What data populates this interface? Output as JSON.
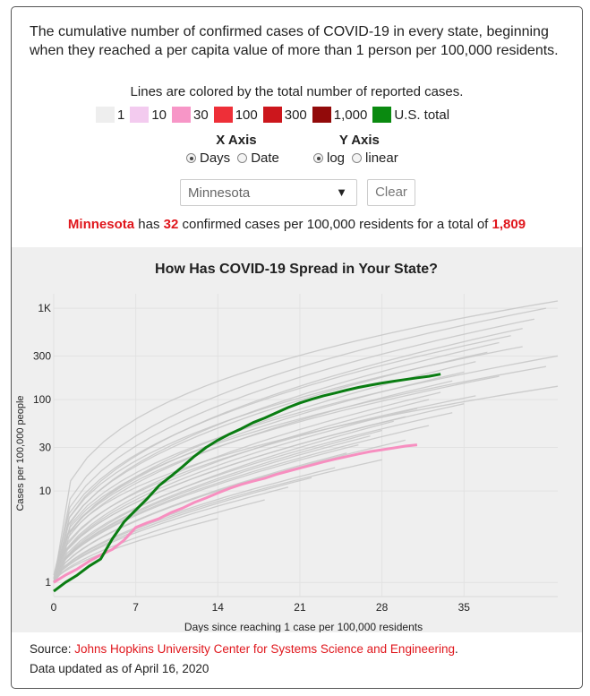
{
  "intro": "The cumulative number of confirmed cases of COVID-19 in every state, beginning when they reached a per capita value of more than 1 person per 100,000 residents.",
  "legend": {
    "caption": "Lines are colored by the total number of reported cases.",
    "items": [
      {
        "label": "1",
        "color": "#eeeeee"
      },
      {
        "label": "10",
        "color": "#f3cbef"
      },
      {
        "label": "30",
        "color": "#f796c7"
      },
      {
        "label": "100",
        "color": "#ee2f38"
      },
      {
        "label": "300",
        "color": "#cc161c"
      },
      {
        "label": "1,000",
        "color": "#920a0a"
      },
      {
        "label": "U.S. total",
        "color": "#0a8a10"
      }
    ]
  },
  "controls": {
    "x_axis": {
      "heading": "X Axis",
      "options": [
        "Days",
        "Date"
      ],
      "selected": "Days"
    },
    "y_axis": {
      "heading": "Y Axis",
      "options": [
        "log",
        "linear"
      ],
      "selected": "log"
    },
    "state_select": "Minnesota",
    "clear_label": "Clear"
  },
  "summary": {
    "state": "Minnesota",
    "text1": " has ",
    "per_capita": "32",
    "text2": " confirmed cases per 100,000 residents for a total of ",
    "total": "1,809"
  },
  "colors": {
    "accent_red": "#e0161c",
    "us_green": "#0a7d12",
    "state_pink": "#f78fc0",
    "state_gray": "#c6c6c6",
    "panel_bg": "#efefef"
  },
  "chart_data": {
    "type": "line",
    "title": "How Has COVID-19 Spread in Your State?",
    "xlabel": "Days since reaching 1 case per 100,000 residents",
    "ylabel": "Cases per 100,000 people",
    "xlim": [
      0,
      43
    ],
    "ylim": [
      0.7,
      1200
    ],
    "yscale": "log",
    "x_ticks": [
      0,
      7,
      14,
      21,
      28,
      35
    ],
    "y_ticks": [
      {
        "value": 1,
        "label": "1"
      },
      {
        "value": 10,
        "label": "10"
      },
      {
        "value": 30,
        "label": "30"
      },
      {
        "value": 100,
        "label": "100"
      },
      {
        "value": 300,
        "label": "300"
      },
      {
        "value": 1000,
        "label": "1K"
      }
    ],
    "highlight_series": [
      {
        "name": "U.S. total",
        "color": "#0a7d12",
        "x": [
          0,
          1,
          2,
          3,
          4,
          5,
          6,
          7,
          8,
          9,
          10,
          11,
          12,
          13,
          14,
          15,
          16,
          17,
          18,
          19,
          20,
          21,
          22,
          23,
          24,
          25,
          26,
          27,
          28,
          29,
          30,
          31,
          32,
          33
        ],
        "y": [
          0.8,
          1.0,
          1.2,
          1.5,
          1.8,
          3.0,
          4.6,
          6.2,
          8.3,
          11.5,
          14.5,
          18.5,
          24,
          30,
          36,
          42,
          48,
          56,
          63,
          72,
          82,
          92,
          101,
          110,
          118,
          127,
          136,
          144,
          152,
          159,
          166,
          173,
          180,
          190
        ]
      },
      {
        "name": "Minnesota",
        "color": "#f78fc0",
        "x": [
          0,
          1,
          2,
          3,
          4,
          5,
          6,
          7,
          8,
          9,
          10,
          11,
          12,
          13,
          14,
          15,
          16,
          17,
          18,
          19,
          20,
          21,
          22,
          23,
          24,
          25,
          26,
          27,
          28,
          29,
          30,
          31
        ],
        "y": [
          1.0,
          1.2,
          1.4,
          1.7,
          2.0,
          2.3,
          2.9,
          4.0,
          4.5,
          5.0,
          5.8,
          6.5,
          7.5,
          8.4,
          9.5,
          10.7,
          11.8,
          12.8,
          13.8,
          15.2,
          16.5,
          17.8,
          19.2,
          20.8,
          22.3,
          23.8,
          25.4,
          27,
          28.3,
          29.6,
          31.0,
          32.0
        ]
      }
    ],
    "other_states": [
      {
        "x": [
          0,
          43
        ],
        "y": [
          1.0,
          1200
        ],
        "curve": 0.3
      },
      {
        "x": [
          0,
          42
        ],
        "y": [
          1.0,
          1000
        ],
        "curve": 0.35
      },
      {
        "x": [
          0,
          41
        ],
        "y": [
          1.1,
          760
        ],
        "curve": 0.38
      },
      {
        "x": [
          0,
          40
        ],
        "y": [
          1.0,
          600
        ],
        "curve": 0.4
      },
      {
        "x": [
          0,
          39
        ],
        "y": [
          1.2,
          500
        ],
        "curve": 0.4
      },
      {
        "x": [
          0,
          38
        ],
        "y": [
          1.0,
          420
        ],
        "curve": 0.42
      },
      {
        "x": [
          0,
          40
        ],
        "y": [
          1.0,
          380
        ],
        "curve": 0.38
      },
      {
        "x": [
          0,
          37
        ],
        "y": [
          1.1,
          330
        ],
        "curve": 0.42
      },
      {
        "x": [
          0,
          43
        ],
        "y": [
          1.0,
          300
        ],
        "curve": 0.4
      },
      {
        "x": [
          0,
          36
        ],
        "y": [
          1.0,
          260
        ],
        "curve": 0.45
      },
      {
        "x": [
          0,
          42
        ],
        "y": [
          1.0,
          230
        ],
        "curve": 0.4
      },
      {
        "x": [
          0,
          35
        ],
        "y": [
          1.1,
          200
        ],
        "curve": 0.45
      },
      {
        "x": [
          0,
          38
        ],
        "y": [
          1.0,
          180
        ],
        "curve": 0.42
      },
      {
        "x": [
          0,
          34
        ],
        "y": [
          1.0,
          160
        ],
        "curve": 0.45
      },
      {
        "x": [
          0,
          43
        ],
        "y": [
          1.0,
          140
        ],
        "curve": 0.4
      },
      {
        "x": [
          0,
          33
        ],
        "y": [
          1.0,
          120
        ],
        "curve": 0.48
      },
      {
        "x": [
          0,
          36
        ],
        "y": [
          1.0,
          110
        ],
        "curve": 0.45
      },
      {
        "x": [
          0,
          32
        ],
        "y": [
          1.0,
          100
        ],
        "curve": 0.5
      },
      {
        "x": [
          0,
          35
        ],
        "y": [
          1.0,
          90
        ],
        "curve": 0.5
      },
      {
        "x": [
          0,
          31
        ],
        "y": [
          1.0,
          80
        ],
        "curve": 0.5
      },
      {
        "x": [
          0,
          34
        ],
        "y": [
          1.0,
          72
        ],
        "curve": 0.52
      },
      {
        "x": [
          0,
          30
        ],
        "y": [
          1.1,
          65
        ],
        "curve": 0.52
      },
      {
        "x": [
          0,
          29
        ],
        "y": [
          1.0,
          58
        ],
        "curve": 0.55
      },
      {
        "x": [
          0,
          32
        ],
        "y": [
          1.0,
          52
        ],
        "curve": 0.55
      },
      {
        "x": [
          0,
          28
        ],
        "y": [
          1.0,
          46
        ],
        "curve": 0.55
      },
      {
        "x": [
          0,
          27
        ],
        "y": [
          1.0,
          40
        ],
        "curve": 0.55
      },
      {
        "x": [
          0,
          30
        ],
        "y": [
          1.0,
          36
        ],
        "curve": 0.58
      },
      {
        "x": [
          0,
          26
        ],
        "y": [
          1.0,
          32
        ],
        "curve": 0.55
      },
      {
        "x": [
          0,
          25
        ],
        "y": [
          1.0,
          26
        ],
        "curve": 0.58
      },
      {
        "x": [
          0,
          28
        ],
        "y": [
          1.0,
          22
        ],
        "curve": 0.6
      },
      {
        "x": [
          0,
          24
        ],
        "y": [
          1.0,
          18
        ],
        "curve": 0.6
      },
      {
        "x": [
          0,
          22
        ],
        "y": [
          1.0,
          14
        ],
        "curve": 0.62
      },
      {
        "x": [
          0,
          20
        ],
        "y": [
          1.0,
          11
        ],
        "curve": 0.62
      },
      {
        "x": [
          0,
          18
        ],
        "y": [
          1.0,
          8
        ],
        "curve": 0.65
      },
      {
        "x": [
          0,
          14
        ],
        "y": [
          1.0,
          5
        ],
        "curve": 0.65
      }
    ]
  },
  "footer": {
    "source_prefix": "Source: ",
    "source_link": "Johns Hopkins University Center for Systems Science and Engineering",
    "source_suffix": ".",
    "updated": "Data updated as of April 16, 2020"
  }
}
